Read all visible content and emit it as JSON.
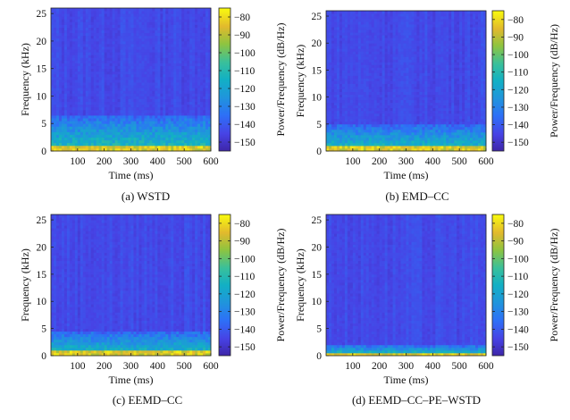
{
  "figure": {
    "colorbar_label": "Power/Frequency (dB/Hz)"
  },
  "chart_data": [
    {
      "type": "heatmap",
      "caption": "(a) WSTD",
      "xlabel": "Time (ms)",
      "ylabel": "Frequency (kHz)",
      "xlim": [
        0,
        600
      ],
      "ylim": [
        0,
        26
      ],
      "xticks": [
        100,
        200,
        300,
        400,
        500,
        600
      ],
      "yticks": [
        0,
        5,
        10,
        15,
        20,
        25
      ],
      "colorbar": {
        "label": "Power/Frequency (dB/Hz)",
        "range": [
          -155,
          -75
        ],
        "ticks": [
          -80,
          -90,
          -100,
          -110,
          -120,
          -130,
          -140,
          -150
        ]
      },
      "energy_band_top_khz": 6.5,
      "bright_band_top_khz": 1.2
    },
    {
      "type": "heatmap",
      "caption": "(b) EMD–CC",
      "xlabel": "Time (ms)",
      "ylabel": "Frequency (kHz)",
      "xlim": [
        0,
        600
      ],
      "ylim": [
        0,
        26
      ],
      "xticks": [
        100,
        200,
        300,
        400,
        500,
        600
      ],
      "yticks": [
        0,
        5,
        10,
        15,
        20,
        25
      ],
      "colorbar": {
        "label": "Power/Frequency (dB/Hz)",
        "range": [
          -155,
          -75
        ],
        "ticks": [
          -80,
          -90,
          -100,
          -110,
          -120,
          -130,
          -140,
          -150
        ]
      },
      "energy_band_top_khz": 5,
      "bright_band_top_khz": 0.8
    },
    {
      "type": "heatmap",
      "caption": "(c) EEMD–CC",
      "xlabel": "Time (ms)",
      "ylabel": "Frequency (kHz)",
      "xlim": [
        0,
        600
      ],
      "ylim": [
        0,
        26
      ],
      "xticks": [
        100,
        200,
        300,
        400,
        500,
        600
      ],
      "yticks": [
        0,
        5,
        10,
        15,
        20,
        25
      ],
      "colorbar": {
        "label": "Power/Frequency (dB/Hz)",
        "range": [
          -155,
          -75
        ],
        "ticks": [
          -80,
          -90,
          -100,
          -110,
          -120,
          -130,
          -140,
          -150
        ]
      },
      "energy_band_top_khz": 4.5,
      "bright_band_top_khz": 0.8
    },
    {
      "type": "heatmap",
      "caption": "(d) EEMD–CC–PE–WSTD",
      "xlabel": "Time (ms)",
      "ylabel": "Frequency (kHz)",
      "xlim": [
        0,
        600
      ],
      "ylim": [
        0,
        26
      ],
      "xticks": [
        100,
        200,
        300,
        400,
        500,
        600
      ],
      "yticks": [
        0,
        5,
        10,
        15,
        20,
        25
      ],
      "colorbar": {
        "label": "Power/Frequency (dB/Hz)",
        "range": [
          -155,
          -75
        ],
        "ticks": [
          -80,
          -90,
          -100,
          -110,
          -120,
          -130,
          -140,
          -150
        ]
      },
      "energy_band_top_khz": 2,
      "bright_band_top_khz": 0.5
    }
  ]
}
